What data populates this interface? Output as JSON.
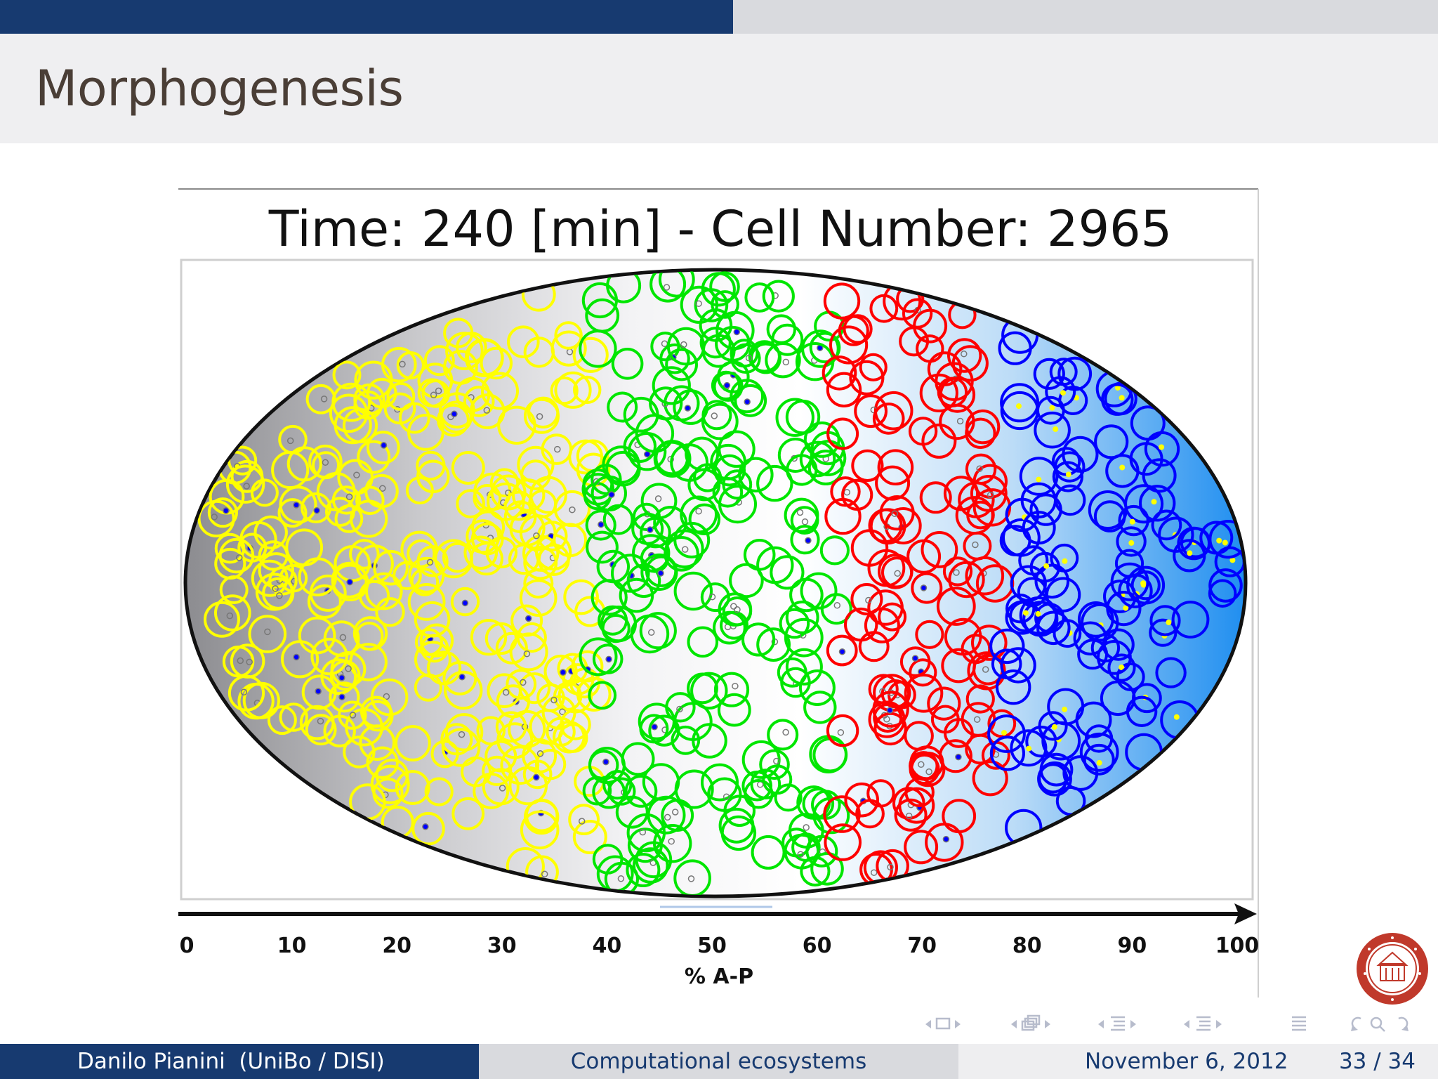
{
  "slide": {
    "title": "Morphogenesis",
    "progress_fraction": 0.51
  },
  "footer": {
    "author": "Danilo Pianini  (UniBo / DISI)",
    "talk_title": "Computational ecosystems",
    "date": "November 6, 2012",
    "page_current": "33",
    "page_total": "34",
    "page_label": "33 / 34"
  },
  "colors": {
    "beamer_blue": "#173a70",
    "yellow_cells": "#ffff00",
    "green_cells": "#00e600",
    "red_cells": "#ff0000",
    "blue_cells": "#0000ff"
  },
  "navigation": {
    "icons": [
      "frame-prev-icon",
      "frame-icon",
      "frame-next-icon",
      "subsection-prev-icon",
      "subsection-icon",
      "subsection-next-icon",
      "section-prev-icon",
      "section-icon",
      "section-next-icon",
      "back-icon",
      "search-icon",
      "forward-icon"
    ]
  },
  "chart_data": {
    "type": "scatter",
    "title": "Time: 240 [min] - Cell Number: 2965",
    "xlabel": "% A-P",
    "ylabel": "",
    "xlim": [
      0,
      100
    ],
    "x_ticks": [
      "0",
      "10",
      "20",
      "30",
      "40",
      "50",
      "60",
      "70",
      "80",
      "90",
      "100"
    ],
    "grid": false,
    "legend": "none",
    "series": [
      {
        "color": "#ffff00",
        "x_range": [
          0,
          39
        ]
      },
      {
        "color": "#00e600",
        "x_range": [
          39,
          62
        ]
      },
      {
        "color": "#ff0000",
        "x_range": [
          62,
          78
        ]
      },
      {
        "color": "#0000ff",
        "x_range": [
          78,
          100
        ]
      }
    ]
  }
}
